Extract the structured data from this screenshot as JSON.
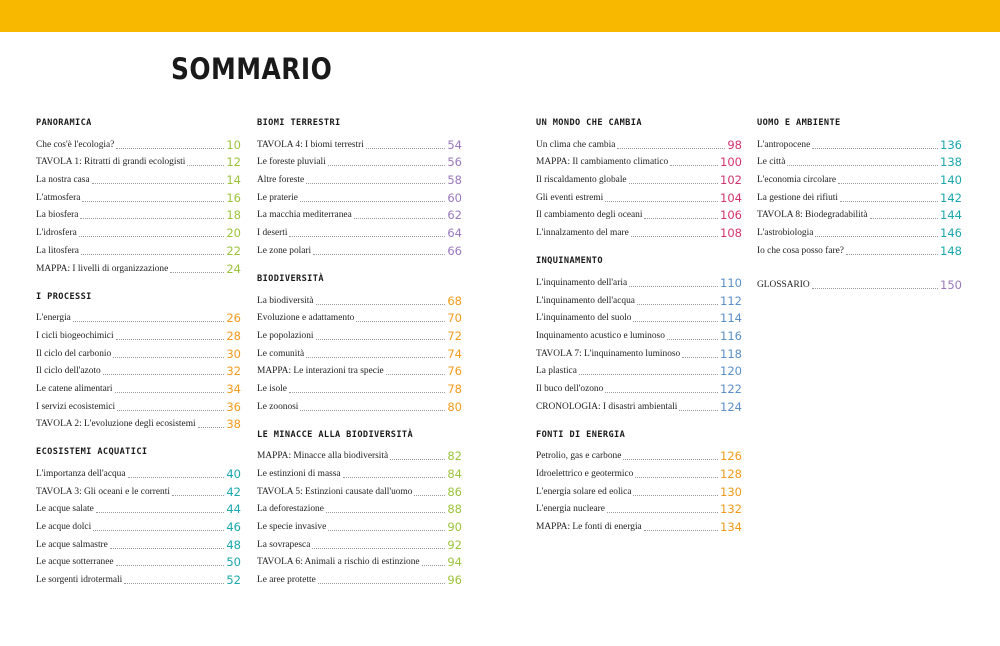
{
  "title": "SOMMARIO",
  "colors": {
    "banner": "#f9b800",
    "green": "#9bc33a",
    "orange": "#f09a1a",
    "teal": "#1aa7ad",
    "purple": "#9a78bd",
    "magenta": "#d2326e",
    "blue": "#5a8fc8"
  },
  "columns": [
    {
      "sections": [
        {
          "heading": "PANORAMICA",
          "color": "green",
          "entries": [
            {
              "label": "Che cos'è l'ecologia?",
              "page": "10"
            },
            {
              "label": "TAVOLA 1: Ritratti di grandi ecologisti",
              "page": "12"
            },
            {
              "label": "La nostra casa",
              "page": "14"
            },
            {
              "label": "L'atmosfera",
              "page": "16"
            },
            {
              "label": "La biosfera",
              "page": "18"
            },
            {
              "label": "L'idrosfera",
              "page": "20"
            },
            {
              "label": "La litosfera",
              "page": "22"
            },
            {
              "label": "MAPPA: I livelli di organizzazione",
              "page": "24"
            }
          ]
        },
        {
          "heading": "I PROCESSI",
          "color": "orange",
          "entries": [
            {
              "label": "L'energia",
              "page": "26"
            },
            {
              "label": "I cicli biogeochimici",
              "page": "28"
            },
            {
              "label": "Il ciclo del carbonio",
              "page": "30"
            },
            {
              "label": "Il ciclo dell'azoto",
              "page": "32"
            },
            {
              "label": "Le catene alimentari",
              "page": "34"
            },
            {
              "label": "I servizi ecosistemici",
              "page": "36"
            },
            {
              "label": "TAVOLA 2: L'evoluzione degli ecosistemi",
              "page": "38"
            }
          ]
        },
        {
          "heading": "ECOSISTEMI ACQUATICI",
          "color": "teal",
          "entries": [
            {
              "label": "L'importanza dell'acqua",
              "page": "40"
            },
            {
              "label": "TAVOLA 3: Gli oceani e le correnti",
              "page": "42"
            },
            {
              "label": "Le acque salate",
              "page": "44"
            },
            {
              "label": "Le acque dolci",
              "page": "46"
            },
            {
              "label": "Le acque salmastre",
              "page": "48"
            },
            {
              "label": "Le acque sotterranee",
              "page": "50"
            },
            {
              "label": "Le sorgenti idrotermali",
              "page": "52"
            }
          ]
        }
      ]
    },
    {
      "sections": [
        {
          "heading": "BIOMI TERRESTRI",
          "color": "purple",
          "entries": [
            {
              "label": "TAVOLA 4: I biomi terrestri",
              "page": "54"
            },
            {
              "label": "Le foreste pluviali",
              "page": "56"
            },
            {
              "label": "Altre foreste",
              "page": "58"
            },
            {
              "label": "Le praterie",
              "page": "60"
            },
            {
              "label": "La macchia mediterranea",
              "page": "62"
            },
            {
              "label": "I deserti",
              "page": "64"
            },
            {
              "label": "Le zone polari",
              "page": "66"
            }
          ]
        },
        {
          "heading": "BIODIVERSITÀ",
          "color": "orange",
          "entries": [
            {
              "label": "La biodiversità",
              "page": "68"
            },
            {
              "label": "Evoluzione e adattamento",
              "page": "70"
            },
            {
              "label": "Le popolazioni",
              "page": "72"
            },
            {
              "label": "Le comunità",
              "page": "74"
            },
            {
              "label": "MAPPA: Le interazioni tra specie",
              "page": "76"
            },
            {
              "label": "Le isole",
              "page": "78"
            },
            {
              "label": "Le zoonosi",
              "page": "80"
            }
          ]
        },
        {
          "heading": "LE MINACCE ALLA BIODIVERSITÀ",
          "color": "green",
          "entries": [
            {
              "label": "MAPPA: Minacce alla biodiversità",
              "page": "82"
            },
            {
              "label": "Le estinzioni di massa",
              "page": "84"
            },
            {
              "label": "TAVOLA 5: Estinzioni causate dall'uomo",
              "page": "86"
            },
            {
              "label": "La deforestazione",
              "page": "88"
            },
            {
              "label": "Le specie invasive",
              "page": "90"
            },
            {
              "label": "La sovrapesca",
              "page": "92"
            },
            {
              "label": "TAVOLA 6: Animali a rischio di estinzione",
              "page": "94"
            },
            {
              "label": "Le aree protette",
              "page": "96"
            }
          ]
        }
      ]
    },
    {
      "sections": [
        {
          "heading": "UN MONDO CHE CAMBIA",
          "color": "magenta",
          "entries": [
            {
              "label": "Un clima che cambia",
              "page": "98"
            },
            {
              "label": "MAPPA: Il cambiamento climatico",
              "page": "100"
            },
            {
              "label": "Il riscaldamento globale",
              "page": "102"
            },
            {
              "label": "Gli eventi estremi",
              "page": "104"
            },
            {
              "label": "Il cambiamento degli oceani",
              "page": "106"
            },
            {
              "label": "L'innalzamento del mare",
              "page": "108"
            }
          ]
        },
        {
          "heading": "INQUINAMENTO",
          "color": "blue",
          "entries": [
            {
              "label": "L'inquinamento dell'aria",
              "page": "110"
            },
            {
              "label": "L'inquinamento dell'acqua",
              "page": "112"
            },
            {
              "label": "L'inquinamento del suolo",
              "page": "114"
            },
            {
              "label": "Inquinamento acustico e luminoso",
              "page": "116"
            },
            {
              "label": "TAVOLA 7: L'inquinamento luminoso",
              "page": "118"
            },
            {
              "label": "La plastica",
              "page": "120"
            },
            {
              "label": "Il buco dell'ozono",
              "page": "122"
            },
            {
              "label": "CRONOLOGIA: I disastri ambientali",
              "page": "124"
            }
          ]
        },
        {
          "heading": "FONTI DI ENERGIA",
          "color": "orange",
          "entries": [
            {
              "label": "Petrolio, gas e carbone",
              "page": "126"
            },
            {
              "label": "Idroelettrico e geotermico",
              "page": "128"
            },
            {
              "label": "L'energia solare ed eolica",
              "page": "130"
            },
            {
              "label": "L'energia nucleare",
              "page": "132"
            },
            {
              "label": "MAPPA: Le fonti di energia",
              "page": "134"
            }
          ]
        }
      ]
    },
    {
      "sections": [
        {
          "heading": "UOMO E AMBIENTE",
          "color": "teal",
          "entries": [
            {
              "label": "L'antropocene",
              "page": "136"
            },
            {
              "label": "Le città",
              "page": "138"
            },
            {
              "label": "L'economia circolare",
              "page": "140"
            },
            {
              "label": "La gestione dei rifiuti",
              "page": "142"
            },
            {
              "label": "TAVOLA 8: Biodegradabilità",
              "page": "144"
            },
            {
              "label": "L'astrobiologia",
              "page": "146"
            },
            {
              "label": "Io che cosa posso fare?",
              "page": "148"
            }
          ]
        },
        {
          "heading": "",
          "color": "purple",
          "entries": [
            {
              "label": "GLOSSARIO",
              "page": "150"
            }
          ]
        }
      ]
    }
  ]
}
